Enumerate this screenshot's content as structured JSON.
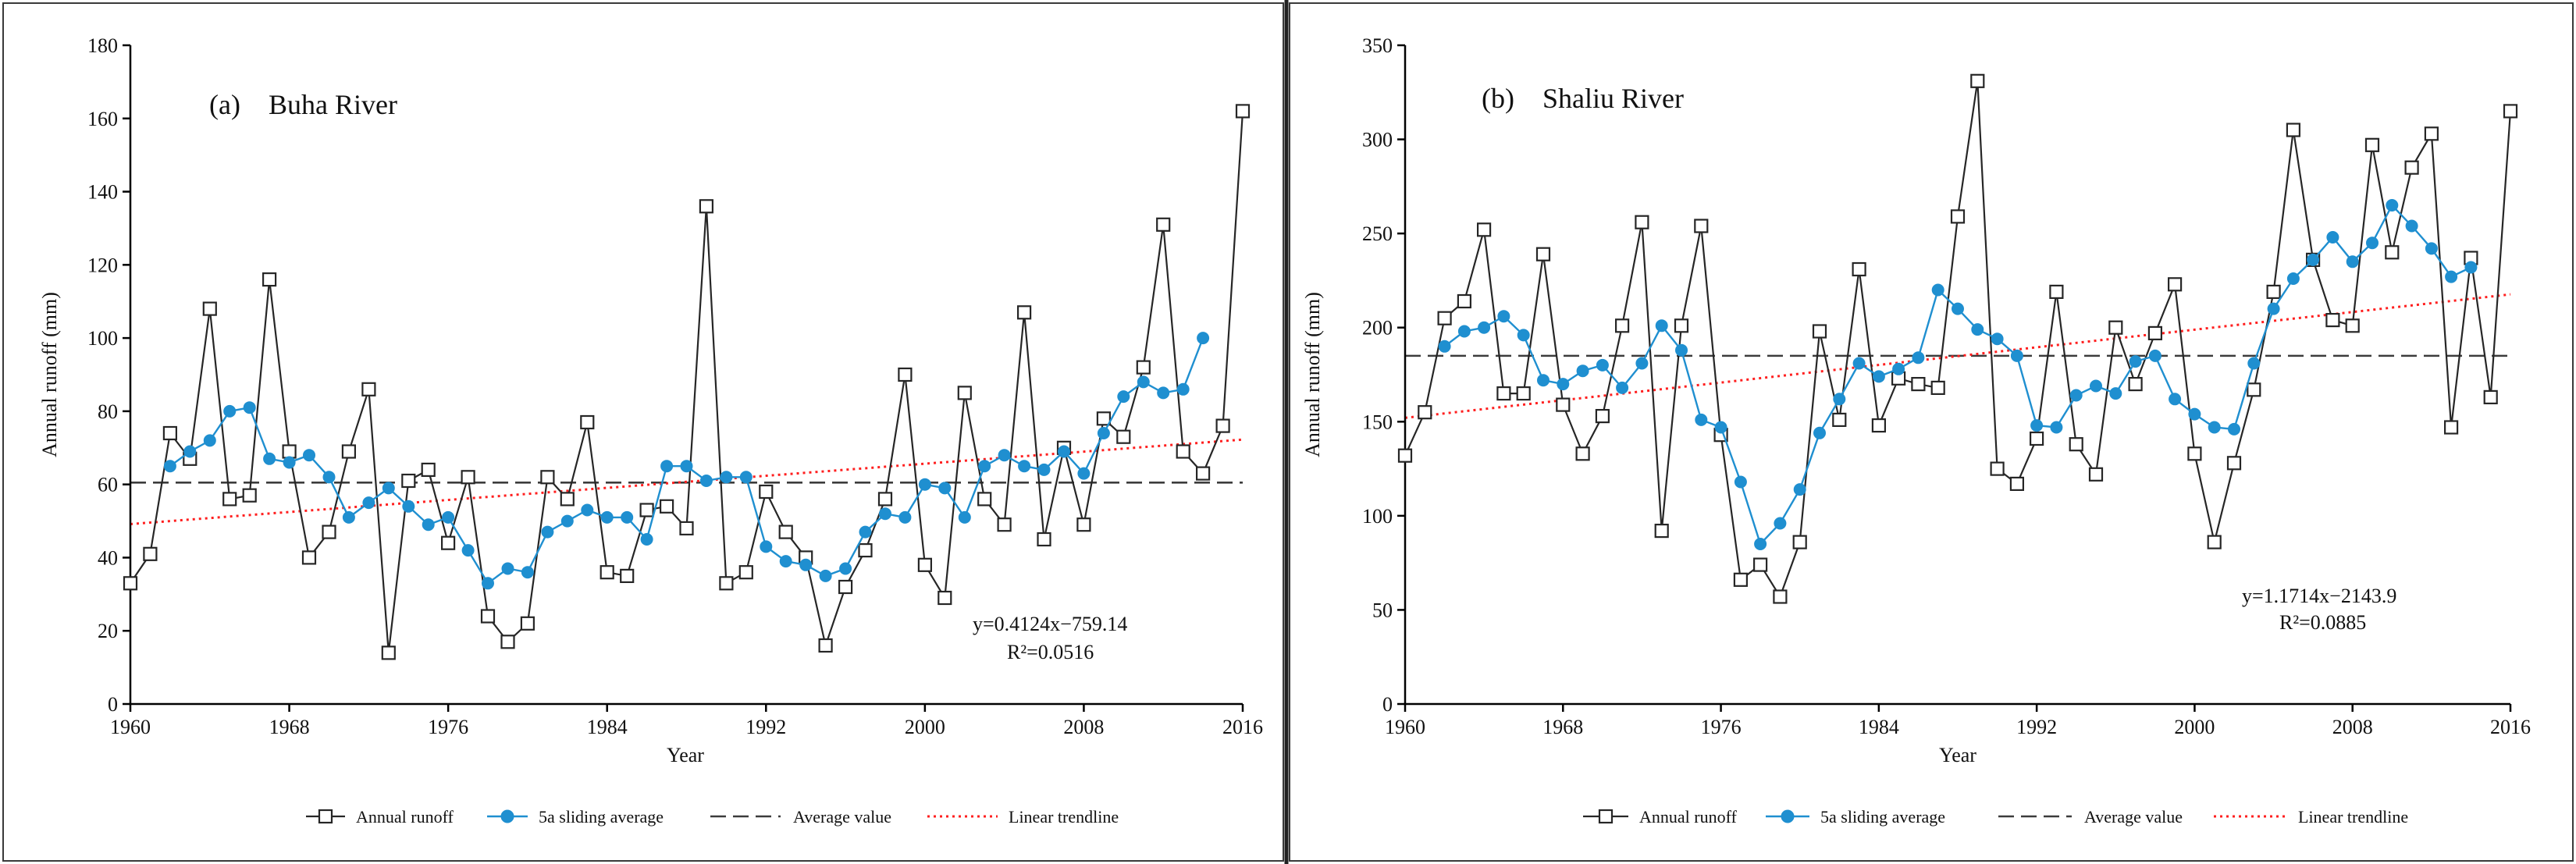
{
  "chart_data": [
    {
      "type": "line",
      "panel": "a",
      "title": "(a)    Buha River",
      "xlabel": "Year",
      "ylabel": "Annual runoff (mm)",
      "xlim": [
        1960,
        2016
      ],
      "ylim": [
        0,
        180
      ],
      "x_ticks": [
        1960,
        1968,
        1976,
        1984,
        1992,
        2000,
        2008,
        2016
      ],
      "y_ticks": [
        0,
        20,
        40,
        60,
        80,
        100,
        120,
        140,
        160,
        180
      ],
      "average_value": 60.5,
      "trendline": {
        "slope": 0.4124,
        "intercept": -759.14,
        "equation": "y=0.4124x−759.14",
        "r2": "R²=0.0516"
      },
      "series": [
        {
          "name": "Annual runoff",
          "x_start": 1960,
          "values": [
            33,
            41,
            74,
            67,
            108,
            56,
            57,
            116,
            69,
            40,
            47,
            69,
            86,
            14,
            61,
            64,
            44,
            62,
            24,
            17,
            22,
            62,
            56,
            77,
            36,
            35,
            53,
            54,
            48,
            136,
            33,
            36,
            58,
            47,
            40,
            16,
            32,
            42,
            56,
            90,
            38,
            29,
            85,
            56,
            49,
            107,
            45,
            70,
            49,
            78,
            73,
            92,
            131,
            69,
            63,
            76,
            162
          ]
        },
        {
          "name": "5a sliding average",
          "x_start": 1962,
          "values": [
            65,
            69,
            72,
            80,
            81,
            67,
            66,
            68,
            62,
            51,
            55,
            59,
            54,
            49,
            51,
            42,
            33,
            37,
            36,
            47,
            50,
            53,
            51,
            51,
            45,
            65,
            65,
            61,
            62,
            62,
            43,
            39,
            38,
            35,
            37,
            47,
            52,
            51,
            60,
            59,
            51,
            65,
            68,
            65,
            64,
            69,
            63,
            74,
            84,
            88,
            85,
            86,
            100
          ]
        }
      ]
    },
    {
      "type": "line",
      "panel": "b",
      "title": "(b)    Shaliu River",
      "xlabel": "Year",
      "ylabel": "Annual runoff (mm)",
      "xlim": [
        1960,
        2016
      ],
      "ylim": [
        0,
        350
      ],
      "x_ticks": [
        1960,
        1968,
        1976,
        1984,
        1992,
        2000,
        2008,
        2016
      ],
      "y_ticks": [
        0,
        50,
        100,
        150,
        200,
        250,
        300,
        350
      ],
      "average_value": 185,
      "trendline": {
        "slope": 1.1714,
        "intercept": -2143.9,
        "equation": "y=1.1714x−2143.9",
        "r2": "R²=0.0885"
      },
      "series": [
        {
          "name": "Annual runoff",
          "x_start": 1960,
          "values": [
            132,
            155,
            205,
            214,
            252,
            165,
            165,
            239,
            159,
            133,
            153,
            201,
            256,
            92,
            201,
            254,
            143,
            66,
            74,
            57,
            86,
            198,
            151,
            231,
            148,
            173,
            170,
            168,
            259,
            331,
            125,
            117,
            141,
            219,
            138,
            122,
            200,
            170,
            197,
            223,
            133,
            86,
            128,
            167,
            219,
            305,
            236,
            204,
            201,
            297,
            240,
            285,
            303,
            147,
            237,
            163,
            315
          ]
        },
        {
          "name": "5a sliding average",
          "x_start": 1962,
          "values": [
            190,
            198,
            200,
            206,
            196,
            172,
            170,
            177,
            180,
            168,
            181,
            201,
            188,
            151,
            147,
            118,
            85,
            96,
            114,
            144,
            162,
            181,
            174,
            178,
            184,
            220,
            210,
            199,
            194,
            185,
            148,
            147,
            164,
            169,
            165,
            182,
            185,
            162,
            154,
            147,
            146,
            181,
            210,
            226,
            236,
            248,
            235,
            245,
            265,
            254,
            242,
            227,
            232
          ]
        }
      ]
    }
  ],
  "legend": {
    "annual": "Annual runoff",
    "sliding": "5a sliding average",
    "average": "Average value",
    "trend": "Linear trendline"
  },
  "colors": {
    "annual": "#262626",
    "sliding": "#1f8fd0",
    "average": "#3c3c3c",
    "trend": "#ff1f1f"
  }
}
